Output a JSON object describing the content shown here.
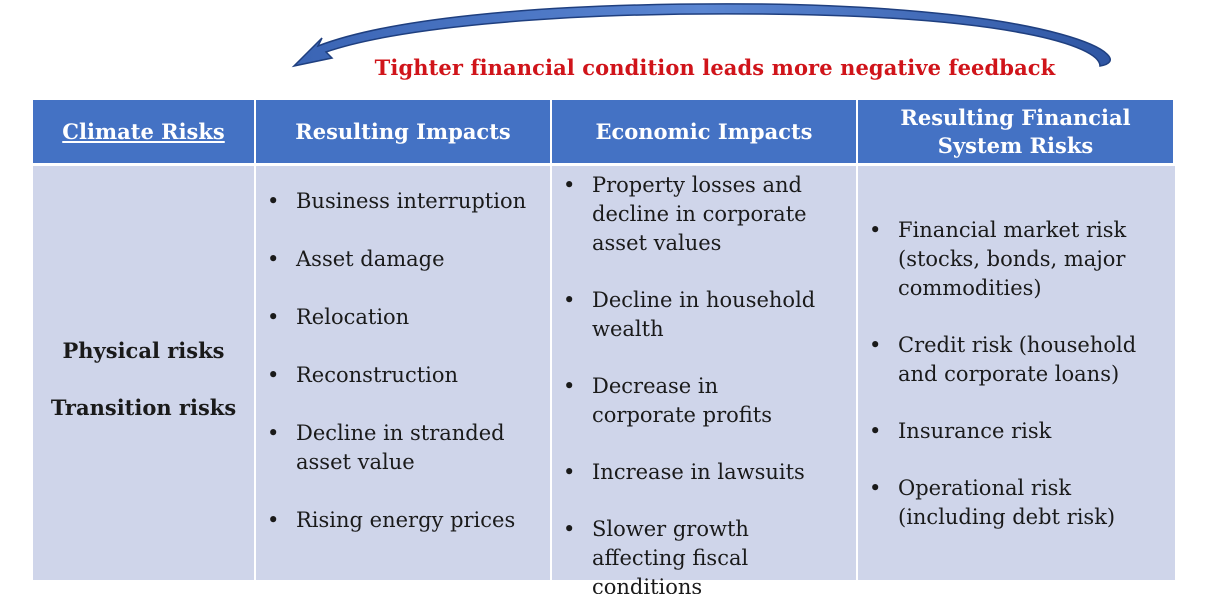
{
  "feedback": {
    "caption": "Tighter financial condition leads more negative feedback",
    "arrow_color": "#4472c4",
    "caption_color": "#d0141a"
  },
  "table": {
    "header_color": "#4472c4",
    "body_color": "#cfd5ea",
    "headers": [
      "Climate Risks",
      "Resulting Impacts",
      "Economic Impacts",
      "Resulting Financial System Risks"
    ],
    "climate_risks": [
      "Physical risks",
      "Transition risks"
    ],
    "resulting_impacts": [
      "Business interruption",
      "Asset damage",
      "Relocation",
      "Reconstruction",
      "Decline in stranded asset value",
      "Rising energy prices"
    ],
    "economic_impacts": [
      "Property losses and decline in corporate asset values",
      "Decline in household wealth",
      "Decrease in corporate profits",
      "Increase in lawsuits",
      "Slower growth affecting fiscal conditions"
    ],
    "financial_system_risks": [
      "Financial market risk (stocks, bonds, major commodities)",
      "Credit risk (household and corporate loans)",
      "Insurance risk",
      "Operational risk (including debt risk)"
    ]
  }
}
